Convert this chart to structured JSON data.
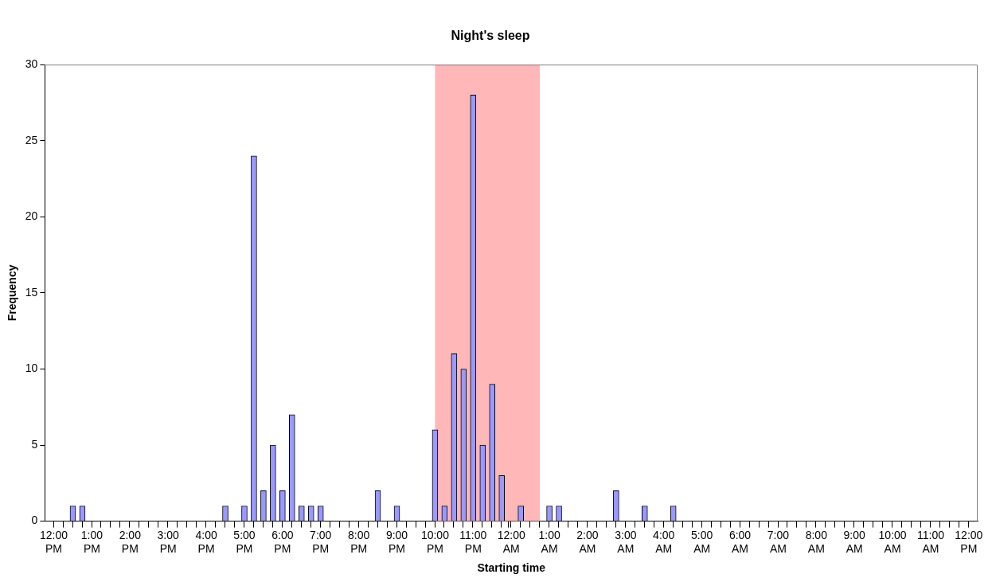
{
  "chart_data": {
    "type": "bar",
    "title": "Night's sleep",
    "xlabel": "Starting time",
    "ylabel": "Frequency",
    "x": [
      "2000-01-01T12:30",
      "2000-01-01T12:45",
      "2000-01-01T16:30",
      "2000-01-01T17:00",
      "2000-01-01T17:15",
      "2000-01-01T17:30",
      "2000-01-01T17:45",
      "2000-01-01T18:00",
      "2000-01-01T18:15",
      "2000-01-01T18:30",
      "2000-01-01T18:45",
      "2000-01-01T19:00",
      "2000-01-01T20:30",
      "2000-01-01T21:00",
      "2000-01-01T22:00",
      "2000-01-01T22:15",
      "2000-01-01T22:30",
      "2000-01-01T22:45",
      "2000-01-01T23:00",
      "2000-01-01T23:15",
      "2000-01-01T23:30",
      "2000-01-01T23:45",
      "2000-01-02T00:15",
      "2000-01-02T01:00",
      "2000-01-02T01:15",
      "2000-01-02T02:45",
      "2000-01-02T03:30",
      "2000-01-02T04:15"
    ],
    "values": [
      1,
      1,
      1,
      1,
      24,
      2,
      5,
      2,
      7,
      1,
      1,
      1,
      2,
      1,
      6,
      1,
      11,
      10,
      28,
      5,
      9,
      3,
      1,
      1,
      1,
      2,
      1,
      1
    ],
    "color": "#9999ff",
    "xlim": [
      "2000-01-01T11:52",
      "2000-01-02T12:08"
    ],
    "xticks": [
      {
        "value": "2000-01-01T12:00",
        "label": "12:00 PM"
      },
      {
        "value": "2000-01-01T13:00",
        "label": "1:00 PM"
      },
      {
        "value": "2000-01-01T14:00",
        "label": "2:00 PM"
      },
      {
        "value": "2000-01-01T15:00",
        "label": "3:00 PM"
      },
      {
        "value": "2000-01-01T16:00",
        "label": "4:00 PM"
      },
      {
        "value": "2000-01-01T17:00",
        "label": "5:00 PM"
      },
      {
        "value": "2000-01-01T18:00",
        "label": "6:00 PM"
      },
      {
        "value": "2000-01-01T19:00",
        "label": "7:00 PM"
      },
      {
        "value": "2000-01-01T20:00",
        "label": "8:00 PM"
      },
      {
        "value": "2000-01-01T21:00",
        "label": "9:00 PM"
      },
      {
        "value": "2000-01-01T22:00",
        "label": "10:00 PM"
      },
      {
        "value": "2000-01-01T23:00",
        "label": "11:00 PM"
      },
      {
        "value": "2000-01-02T00:00",
        "label": "12:00 AM"
      },
      {
        "value": "2000-01-02T01:00",
        "label": "1:00 AM"
      },
      {
        "value": "2000-01-02T02:00",
        "label": "2:00 AM"
      },
      {
        "value": "2000-01-02T03:00",
        "label": "3:00 AM"
      },
      {
        "value": "2000-01-02T04:00",
        "label": "4:00 AM"
      },
      {
        "value": "2000-01-02T05:00",
        "label": "5:00 AM"
      },
      {
        "value": "2000-01-02T06:00",
        "label": "6:00 AM"
      },
      {
        "value": "2000-01-02T07:00",
        "label": "7:00 AM"
      },
      {
        "value": "2000-01-02T08:00",
        "label": "8:00 AM"
      },
      {
        "value": "2000-01-02T09:00",
        "label": "9:00 AM"
      },
      {
        "value": "2000-01-02T10:00",
        "label": "10:00 AM"
      },
      {
        "value": "2000-01-02T11:00",
        "label": "11:00 AM"
      },
      {
        "value": "2000-01-02T12:00",
        "label": "12:00 PM"
      }
    ],
    "ylim": [
      0,
      30
    ],
    "yticks": [
      0,
      5,
      10,
      15,
      20,
      25,
      30
    ],
    "bands": [
      {
        "axis": "x",
        "from": "2000-01-01T22:00",
        "to": "2000-01-02T00:45",
        "color": "#ffaaaa"
      }
    ],
    "grid": false,
    "legend": false
  }
}
